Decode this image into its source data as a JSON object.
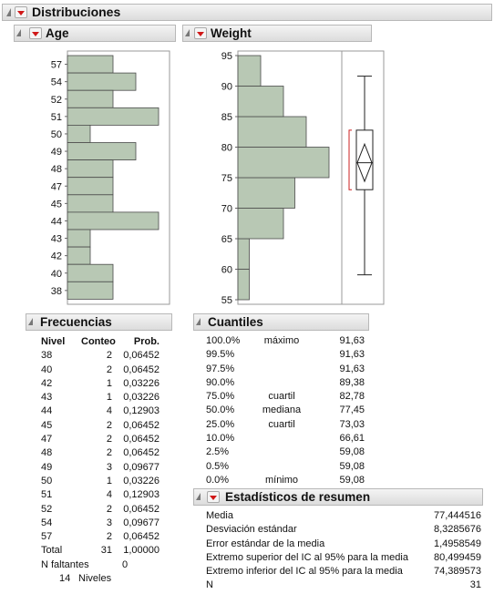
{
  "main_header": {
    "title": "Distribuciones"
  },
  "age": {
    "title": "Age",
    "tick_labels": [
      "57",
      "54",
      "52",
      "51",
      "50",
      "49",
      "48",
      "47",
      "45",
      "44",
      "43",
      "42",
      "40",
      "38"
    ]
  },
  "weight": {
    "title": "Weight",
    "tick_labels": [
      "95",
      "90",
      "85",
      "80",
      "75",
      "70",
      "65",
      "60",
      "55"
    ]
  },
  "chart_data": [
    {
      "type": "bar",
      "orientation": "horizontal",
      "title": "Age",
      "categories": [
        "38",
        "40",
        "42",
        "43",
        "44",
        "45",
        "47",
        "48",
        "49",
        "50",
        "51",
        "52",
        "54",
        "57"
      ],
      "values": [
        2,
        2,
        1,
        1,
        4,
        2,
        2,
        2,
        3,
        1,
        4,
        2,
        3,
        2
      ]
    },
    {
      "type": "bar",
      "orientation": "horizontal",
      "title": "Weight",
      "bins": [
        [
          55,
          60
        ],
        [
          60,
          65
        ],
        [
          65,
          70
        ],
        [
          70,
          75
        ],
        [
          75,
          80
        ],
        [
          80,
          85
        ],
        [
          85,
          90
        ],
        [
          90,
          95
        ]
      ],
      "values": [
        1,
        1,
        4,
        5,
        8,
        6,
        4,
        2
      ],
      "ylim": [
        55,
        95
      ],
      "boxplot": {
        "min": 59.08,
        "q1": 73.03,
        "median": 77.45,
        "q3": 82.78,
        "max": 91.63,
        "mean": 77.444516,
        "ci_low": 74.389573,
        "ci_high": 80.499459
      }
    }
  ],
  "frecuencias": {
    "title": "Frecuencias",
    "headers": [
      "Nivel",
      "Conteo",
      "Prob."
    ],
    "rows": [
      [
        "38",
        "2",
        "0,06452"
      ],
      [
        "40",
        "2",
        "0,06452"
      ],
      [
        "42",
        "1",
        "0,03226"
      ],
      [
        "43",
        "1",
        "0,03226"
      ],
      [
        "44",
        "4",
        "0,12903"
      ],
      [
        "45",
        "2",
        "0,06452"
      ],
      [
        "47",
        "2",
        "0,06452"
      ],
      [
        "48",
        "2",
        "0,06452"
      ],
      [
        "49",
        "3",
        "0,09677"
      ],
      [
        "50",
        "1",
        "0,03226"
      ],
      [
        "51",
        "4",
        "0,12903"
      ],
      [
        "52",
        "2",
        "0,06452"
      ],
      [
        "54",
        "3",
        "0,09677"
      ],
      [
        "57",
        "2",
        "0,06452"
      ]
    ],
    "total": [
      "Total",
      "31",
      "1,00000"
    ],
    "missing_label": "N faltantes",
    "missing_value": "0",
    "levels_count": "14",
    "levels_label": "Niveles"
  },
  "cuantiles": {
    "title": "Cuantiles",
    "rows": [
      [
        "100.0%",
        "máximo",
        "91,63"
      ],
      [
        "99.5%",
        "",
        "91,63"
      ],
      [
        "97.5%",
        "",
        "91,63"
      ],
      [
        "90.0%",
        "",
        "89,38"
      ],
      [
        "75.0%",
        "cuartil",
        "82,78"
      ],
      [
        "50.0%",
        "mediana",
        "77,45"
      ],
      [
        "25.0%",
        "cuartil",
        "73,03"
      ],
      [
        "10.0%",
        "",
        "66,61"
      ],
      [
        "2.5%",
        "",
        "59,08"
      ],
      [
        "0.5%",
        "",
        "59,08"
      ],
      [
        "0.0%",
        "mínimo",
        "59,08"
      ]
    ]
  },
  "resumen": {
    "title": "Estadísticos de resumen",
    "rows": [
      [
        "Media",
        "77,444516"
      ],
      [
        "Desviación estándar",
        "8,3285676"
      ],
      [
        "Error estándar de la media",
        "1,4958549"
      ],
      [
        "Extremo superior del IC al 95% para la media",
        "80,499459"
      ],
      [
        "Extremo inferior del IC al 95% para la media",
        "74,389573"
      ],
      [
        "N",
        "31"
      ]
    ]
  },
  "colors": {
    "bar_fill": "#b8c8b4",
    "bar_stroke": "#4a4a4a",
    "ci_bracket": "#cc2020"
  }
}
